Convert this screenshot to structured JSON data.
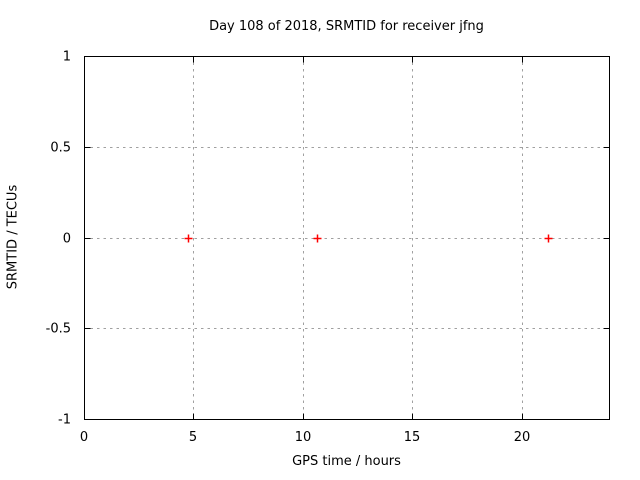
{
  "chart_data": {
    "type": "scatter",
    "title": "Day 108 of 2018, SRMTID for receiver jfng",
    "xlabel": "GPS time / hours",
    "ylabel": "SRMTID / TECUs",
    "xlim": [
      0,
      24
    ],
    "ylim": [
      -1,
      1
    ],
    "xticks": [
      0,
      5,
      10,
      15,
      20
    ],
    "yticks": [
      -1,
      -0.5,
      0,
      0.5,
      1
    ],
    "grid": true,
    "legend": "none",
    "marker": "plus",
    "points": [
      {
        "x": 4.75,
        "y": 0
      },
      {
        "x": 10.65,
        "y": 0
      },
      {
        "x": 21.2,
        "y": 0
      }
    ],
    "colors": {
      "background": "#ffffff",
      "border": "#000000",
      "grid": "#a0a0a0",
      "marker": "#ff0000",
      "text": "#000000"
    }
  }
}
